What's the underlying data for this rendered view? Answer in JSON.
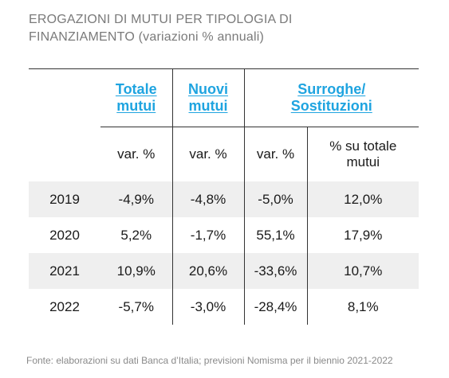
{
  "title_lines": [
    "EROGAZIONI DI MUTUI PER TIPOLOGIA DI",
    "FINANZIAMENTO (variazioni % annuali)"
  ],
  "header": {
    "totale": [
      "Totale",
      "mutui"
    ],
    "nuovi": [
      "Nuovi",
      "mutui"
    ],
    "surroghe": [
      "Surroghe/",
      "Sostituzioni"
    ]
  },
  "subheader": {
    "var": "var. %",
    "share": [
      "% su totale",
      "mutui"
    ]
  },
  "rows": [
    {
      "year": "2019",
      "totale": "-4,9%",
      "nuovi": "-4,8%",
      "surr_var": "-5,0%",
      "surr_share": "12,0%"
    },
    {
      "year": "2020",
      "totale": "5,2%",
      "nuovi": "-1,7%",
      "surr_var": "55,1%",
      "surr_share": "17,9%"
    },
    {
      "year": "2021",
      "totale": "10,9%",
      "nuovi": "20,6%",
      "surr_var": "-33,6%",
      "surr_share": "10,7%"
    },
    {
      "year": "2022",
      "totale": "-5,7%",
      "nuovi": "-3,0%",
      "surr_var": "-28,4%",
      "surr_share": "8,1%"
    }
  ],
  "footnote": "Fonte: elaborazioni su dati Banca d’Italia; previsioni Nomisma per il biennio 2021-2022",
  "colors": {
    "accent": "#1fa4e0",
    "shade": "#efefef",
    "title": "#7a7a7a"
  }
}
